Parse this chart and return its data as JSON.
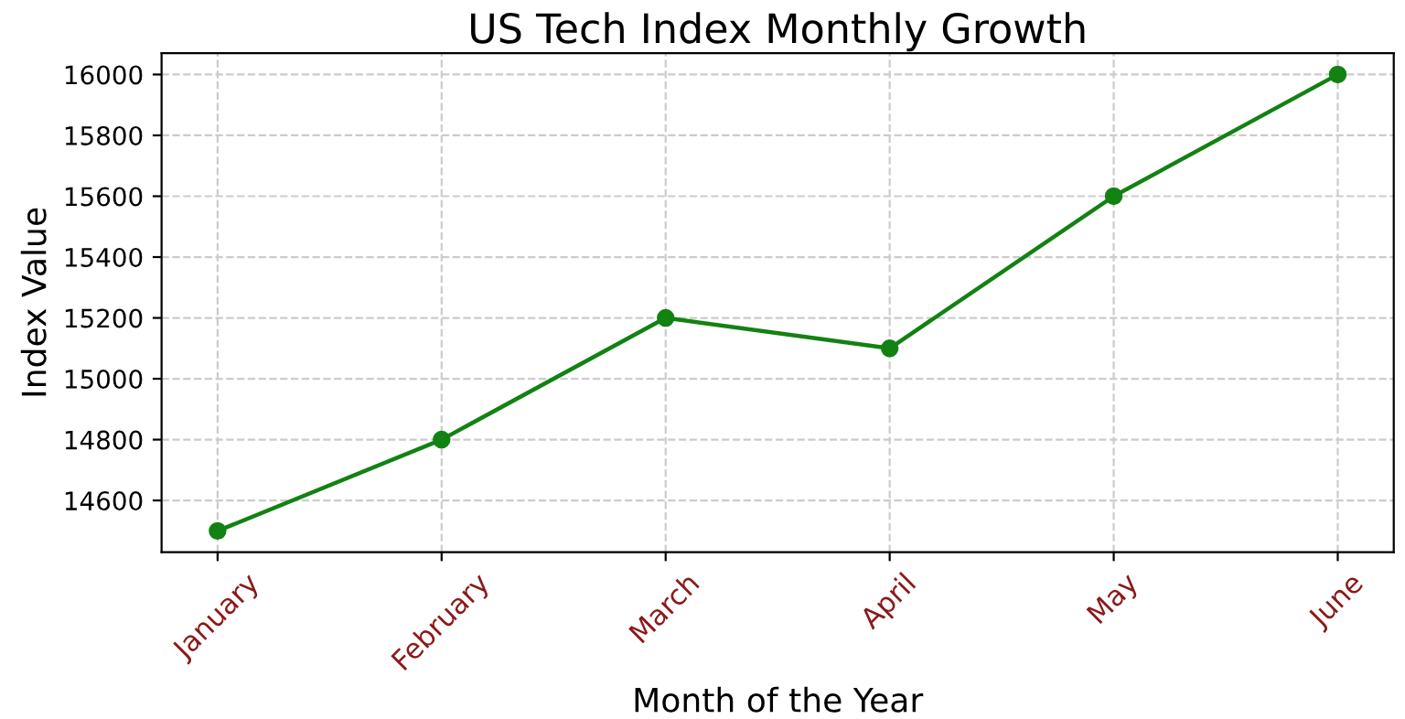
{
  "chart_data": {
    "type": "line",
    "title": "US Tech Index Monthly Growth",
    "xlabel": "Month of the Year",
    "ylabel": "Index Value",
    "categories": [
      "January",
      "February",
      "March",
      "April",
      "May",
      "June"
    ],
    "series": [
      {
        "color": "#128212",
        "values": [
          14500,
          14800,
          15200,
          15100,
          15600,
          16000
        ]
      }
    ],
    "ylim": [
      14430,
      16070
    ],
    "yticks": [
      14600,
      14800,
      15000,
      15200,
      15400,
      15600,
      15800,
      16000
    ],
    "grid": true,
    "marker": "circle",
    "line_style": "solid"
  }
}
